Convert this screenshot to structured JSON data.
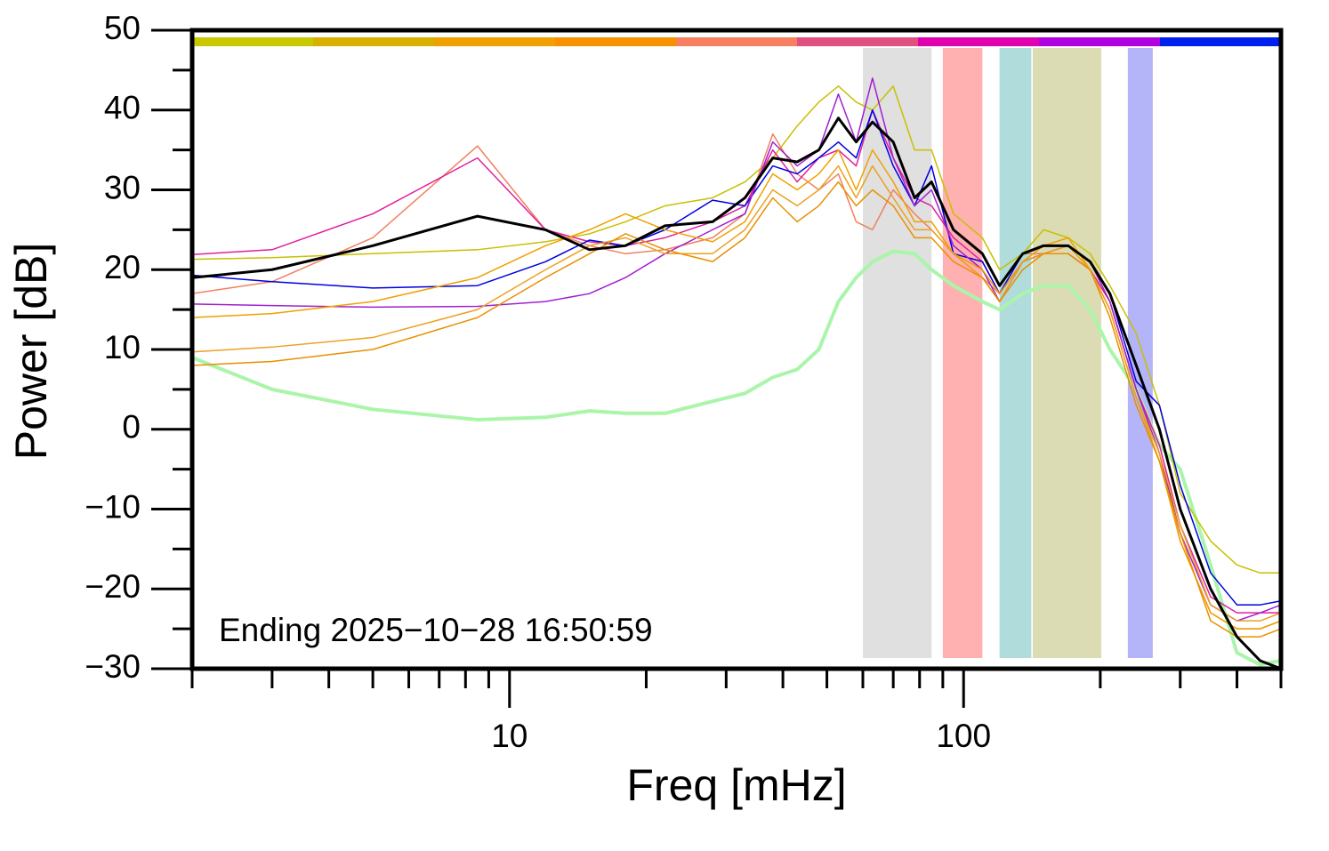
{
  "chart_data": {
    "type": "line",
    "xlabel": "Freq [mHz]",
    "ylabel": "Power [dB]",
    "annotation": "Ending 2025−10−28 16:50:59",
    "xscale": "log",
    "xlim": [
      2,
      500
    ],
    "ylim": [
      -30,
      50
    ],
    "xticks": [
      10,
      100
    ],
    "xminorticks": [
      2,
      3,
      4,
      5,
      6,
      7,
      8,
      9,
      20,
      30,
      40,
      50,
      60,
      70,
      80,
      90,
      200,
      300,
      400,
      500
    ],
    "yticks": [
      {
        "value": -30,
        "label": "−30"
      },
      {
        "value": -20,
        "label": "−20"
      },
      {
        "value": -10,
        "label": "−10"
      },
      0,
      10,
      20,
      30,
      40,
      50
    ],
    "yminorticks": [
      -25,
      -15,
      -5,
      5,
      15,
      25,
      35,
      45
    ],
    "bands": [
      {
        "range": [
          60,
          85
        ],
        "color": "#e0e0e0"
      },
      {
        "range": [
          90,
          110
        ],
        "color": "#ffb0b0"
      },
      {
        "range": [
          120,
          141
        ],
        "color": "#b0dcdc"
      },
      {
        "range": [
          142,
          201
        ],
        "color": "#dcdcb4"
      },
      {
        "range": [
          230,
          261
        ],
        "color": "#b4b4f8"
      }
    ],
    "x": [
      2,
      3,
      5,
      8.5,
      12,
      15,
      18,
      22,
      28,
      33,
      38,
      43,
      48,
      53,
      58,
      63,
      70,
      78,
      85,
      95,
      110,
      120,
      135,
      150,
      170,
      190,
      210,
      240,
      270,
      300,
      350,
      400,
      450,
      500
    ],
    "series": [
      {
        "color": "#aaf5aa",
        "linewidth": 4,
        "values": [
          9,
          5,
          2.5,
          1.2,
          1.5,
          2.3,
          2,
          2,
          3.5,
          4.5,
          6.5,
          7.5,
          10,
          16,
          19,
          21,
          22.3,
          22,
          20,
          18,
          16,
          15,
          17,
          18,
          18,
          15,
          10,
          5,
          -2,
          -5,
          -17,
          -28,
          -29.5,
          -29
        ]
      },
      {
        "color": "#c8c000",
        "linewidth": 1.5,
        "values": [
          21.3,
          21.5,
          22,
          22.5,
          23.5,
          24.5,
          26,
          28,
          29,
          31,
          34,
          38,
          41,
          43,
          41,
          40,
          43,
          35,
          35,
          27,
          24,
          20,
          22,
          25,
          24,
          22,
          18,
          12,
          3,
          -8,
          -14,
          -17,
          -18,
          -18
        ]
      },
      {
        "color": "#f08060",
        "linewidth": 1.5,
        "values": [
          17,
          18.5,
          24,
          35.5,
          25,
          23,
          22,
          22.5,
          24,
          27,
          37,
          32,
          30,
          32,
          26,
          25,
          30,
          27,
          25,
          22,
          19,
          17,
          22,
          22,
          22,
          20,
          16,
          5,
          -3,
          -14,
          -23,
          -25,
          -25,
          -24
        ]
      },
      {
        "color": "#e020a0",
        "linewidth": 1.5,
        "values": [
          21.9,
          22.5,
          27,
          34,
          25,
          23.5,
          23,
          24,
          26,
          28,
          35,
          31,
          34,
          35,
          33,
          40,
          34,
          29,
          28,
          24,
          21,
          17,
          21,
          22,
          22,
          20,
          16,
          5,
          -2,
          -12,
          -21,
          -23,
          -23,
          -23
        ]
      },
      {
        "color": "#0000e0",
        "linewidth": 1.5,
        "values": [
          19.3,
          18.5,
          17.7,
          18,
          21,
          23.7,
          23,
          25,
          28.7,
          28,
          33,
          32,
          34,
          36,
          34,
          40,
          33,
          28,
          33,
          22,
          21,
          17,
          22,
          23,
          23,
          21,
          17,
          6,
          3,
          -7,
          -18,
          -22,
          -22,
          -21.5
        ]
      },
      {
        "color": "#a020d0",
        "linewidth": 1.5,
        "values": [
          15.7,
          15.5,
          15.3,
          15.4,
          16,
          17,
          19,
          22,
          25,
          27,
          36,
          33,
          35,
          42,
          36,
          44,
          34,
          28,
          30,
          23,
          20,
          16,
          21,
          22,
          23,
          21,
          16,
          5,
          -3,
          -13,
          -22,
          -24,
          -23,
          -22
        ]
      },
      {
        "color": "#f0a000",
        "linewidth": 1.5,
        "values": [
          14,
          14.5,
          16,
          19,
          23,
          25,
          27,
          25,
          23.5,
          26,
          32,
          30,
          32,
          35,
          30,
          35,
          31,
          26,
          26,
          22,
          20,
          17,
          21,
          23,
          24,
          20,
          15,
          4,
          -4,
          -14,
          -23,
          -25,
          -25,
          -24
        ]
      },
      {
        "color": "#eca020",
        "linewidth": 1.5,
        "values": [
          9.7,
          10.3,
          11.5,
          15,
          20,
          23,
          24,
          22,
          22,
          25,
          30,
          28,
          30,
          33,
          29,
          33,
          29,
          25,
          25,
          22,
          19,
          16,
          21,
          22,
          23,
          20,
          15,
          4,
          -3,
          -12,
          -22,
          -24,
          -24,
          -23
        ]
      },
      {
        "color": "#e89000",
        "linewidth": 1.5,
        "values": [
          8,
          8.5,
          10,
          14,
          19,
          22,
          24.5,
          22.5,
          21,
          24,
          29,
          26,
          28,
          31,
          28,
          30,
          28,
          24,
          24,
          21,
          19,
          16,
          20,
          22,
          22,
          20,
          14,
          3,
          -4,
          -13,
          -24,
          -26,
          -26,
          -25
        ]
      },
      {
        "color": "#000000",
        "linewidth": 3,
        "values": [
          19,
          20,
          23,
          26.7,
          25,
          22.5,
          23,
          25.5,
          26,
          29,
          34,
          33.5,
          35,
          39,
          36,
          38.5,
          36,
          29,
          31,
          25,
          22,
          18,
          22,
          23,
          23,
          21,
          17,
          8,
          0,
          -10,
          -20,
          -26,
          -29,
          -30
        ]
      }
    ]
  }
}
